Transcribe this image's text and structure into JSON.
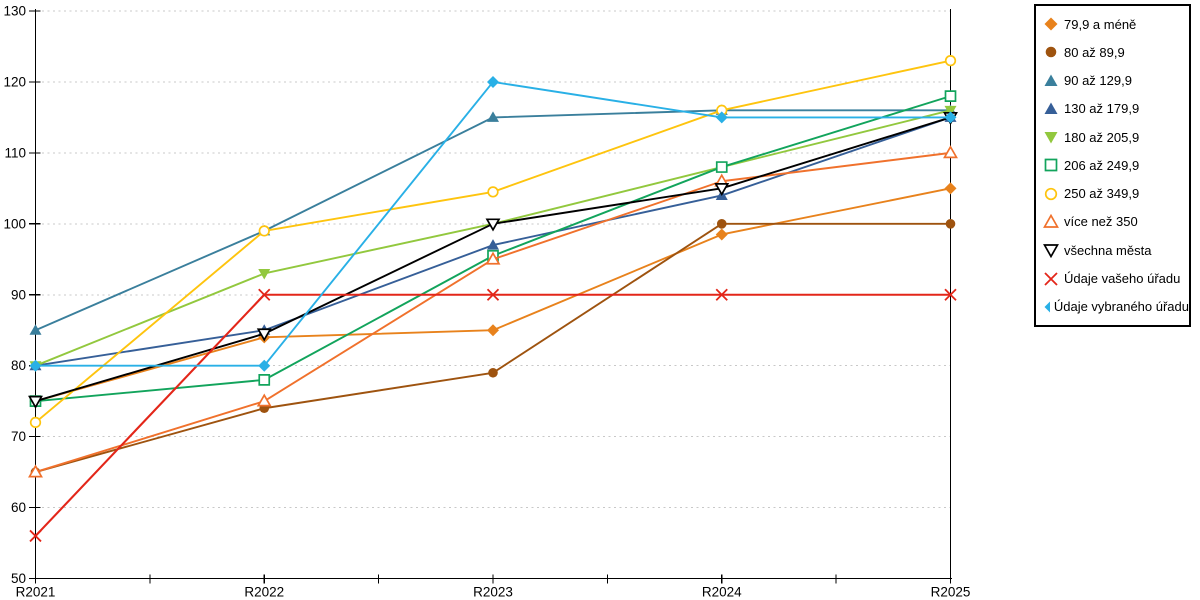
{
  "chart_data": {
    "type": "line",
    "title": "",
    "xlabel": "",
    "ylabel": "",
    "categories": [
      "R2021",
      "R2022",
      "R2023",
      "R2024",
      "R2025"
    ],
    "ylim": [
      50,
      130
    ],
    "y_ticks": [
      50,
      60,
      70,
      80,
      90,
      100,
      110,
      120,
      130
    ],
    "grid": "horizontal-dashed",
    "grid_color": "#c8c8c8",
    "axis_color": "#000000",
    "legend_position": "outside-top-right",
    "series": [
      {
        "name": "79,9 a méně",
        "color": "#e8821c",
        "marker": "diamond",
        "fill": "filled",
        "values": [
          75,
          84,
          85,
          98.5,
          105
        ]
      },
      {
        "name": "80 až 89,9",
        "color": "#9e530f",
        "marker": "circle",
        "fill": "filled",
        "values": [
          65,
          74,
          79,
          100,
          100
        ]
      },
      {
        "name": "90 až 129,9",
        "color": "#3a7f9c",
        "marker": "triangle-up",
        "fill": "filled",
        "values": [
          85,
          99,
          115,
          116,
          116
        ]
      },
      {
        "name": "130 až 179,9",
        "color": "#365f98",
        "marker": "triangle-up",
        "fill": "filled",
        "values": [
          80,
          85,
          97,
          104,
          115
        ]
      },
      {
        "name": "180 až 205,9",
        "color": "#92c83e",
        "marker": "triangle-down",
        "fill": "filled",
        "values": [
          80,
          93,
          100,
          108,
          116
        ]
      },
      {
        "name": "206 až 249,9",
        "color": "#12a45c",
        "marker": "square",
        "fill": "open",
        "values": [
          75,
          78,
          95.5,
          108,
          118
        ]
      },
      {
        "name": "250 až 349,9",
        "color": "#fec40e",
        "marker": "circle",
        "fill": "open",
        "values": [
          72,
          99,
          104.5,
          116,
          123
        ]
      },
      {
        "name": "více než 350",
        "color": "#f0712c",
        "marker": "triangle-up",
        "fill": "open",
        "values": [
          65,
          75,
          95,
          106,
          110
        ]
      },
      {
        "name": "všechna města",
        "color": "#000000",
        "marker": "triangle-down",
        "fill": "open",
        "values": [
          75,
          84.5,
          100,
          105,
          115
        ]
      },
      {
        "name": "Údaje vašeho úřadu",
        "color": "#e32619",
        "marker": "x",
        "fill": "line",
        "values": [
          56,
          90,
          90,
          90,
          90
        ]
      },
      {
        "name": "Údaje vybraného úřadu",
        "color": "#29b0e6",
        "marker": "diamond",
        "fill": "filled",
        "values": [
          80,
          80,
          120,
          115,
          115
        ]
      }
    ]
  }
}
